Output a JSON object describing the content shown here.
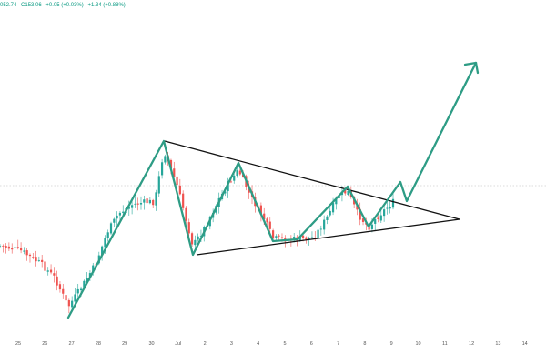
{
  "header": {
    "items": [
      "052.74",
      "C153.06",
      "+0.05 (+0.03%)",
      "+1.34 (+0.88%)"
    ]
  },
  "colors": {
    "up": "#26a69a",
    "down": "#ef5350",
    "arrow": "#2e9c85",
    "triangle": "#111111",
    "price_line": "#b8b8b8",
    "header_text": "#089981"
  },
  "chart_data": {
    "type": "candlestick",
    "title": "",
    "xlabel": "",
    "ylabel": "",
    "x_ticks": [
      "25",
      "26",
      "27",
      "28",
      "29",
      "30",
      "Jul",
      "2",
      "3",
      "4",
      "5",
      "6",
      "7",
      "8",
      "9",
      "10",
      "11",
      "12",
      "13",
      "14"
    ],
    "y_axis_visible": false,
    "grid": false,
    "overlays": [
      "symmetrical triangle trendlines",
      "zigzag price path ending in upward arrow",
      "dotted current-price line"
    ],
    "candle_count": 132
  }
}
